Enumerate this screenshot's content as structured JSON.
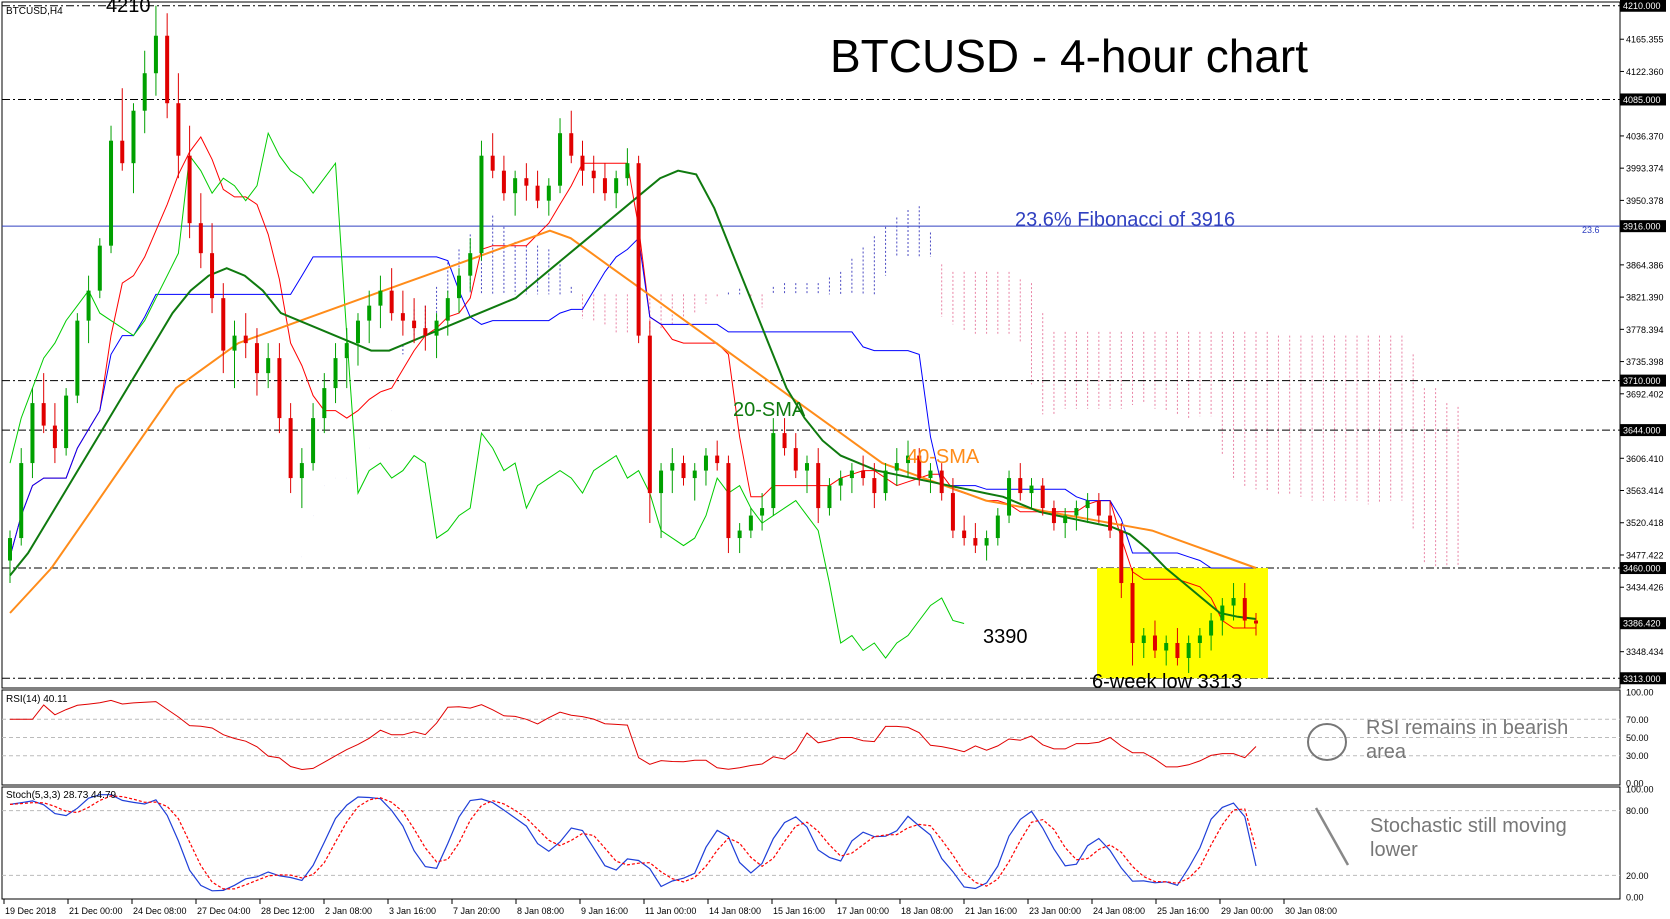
{
  "window_title": "BTCUSD,H4",
  "title": "BTCUSD - 4-hour chart",
  "price_axis_ticks": [
    "4210.000",
    "4165.355",
    "4122.360",
    "4085.000",
    "4036.370",
    "3993.374",
    "3950.378",
    "3916.000",
    "3864.386",
    "3821.390",
    "3778.394",
    "3735.398",
    "3710.000",
    "3692.402",
    "3644.000",
    "3606.410",
    "3563.414",
    "3520.418",
    "3477.422",
    "3460.000",
    "3434.426",
    "3386.420",
    "3348.434",
    "3313.000"
  ],
  "time_axis_ticks": [
    "19 Dec 2018",
    "21 Dec 00:00",
    "24 Dec 08:00",
    "27 Dec 04:00",
    "28 Dec 12:00",
    "2 Jan 08:00",
    "3 Jan 16:00",
    "7 Jan 20:00",
    "8 Jan 08:00",
    "9 Jan 16:00",
    "11 Jan 00:00",
    "14 Jan 08:00",
    "15 Jan 16:00",
    "17 Jan 00:00",
    "18 Jan 08:00",
    "21 Jan 16:00",
    "23 Jan 00:00",
    "24 Jan 08:00",
    "25 Jan 16:00",
    "29 Jan 00:00",
    "30 Jan 08:00"
  ],
  "annotations": {
    "high_label": "4210",
    "fib_label": "23.6% Fibonacci of 3916",
    "fib_tag": "23.6",
    "sma20_label": "20-SMA",
    "sma40_label": "40-SMA",
    "low_3390": "3390",
    "low_6week": "6-week low 3313",
    "rsi_note": "RSI remains in bearish area",
    "stoch_note": "Stochastic still moving lower"
  },
  "rsi_panel": {
    "header": "RSI(14) 40.11",
    "ticks": [
      "100.00",
      "70.00",
      "50.00",
      "30.00",
      "0.00"
    ]
  },
  "stoch_panel": {
    "header": "Stoch(5,3,3) 28.73 44.79",
    "ticks": [
      "100.00",
      "80.00",
      "20.00",
      "0.00"
    ]
  },
  "colors": {
    "sma20": "#0f7a0f",
    "sma40": "#ff8c1a",
    "tenkan": "#ff0000",
    "kijun": "#0000ff",
    "chikou": "#00cc00",
    "bull": "#00a000",
    "bear": "#e00000",
    "cloud_bull": "#0000aa",
    "cloud_bear": "#e05080",
    "fib": "#3040c0",
    "highlight": "#ffff00",
    "rsi": "#e00000",
    "stoch_main": "#1f3fd8",
    "stoch_signal": "#ff0000"
  },
  "chart_data": {
    "type": "candlestick",
    "symbol": "BTCUSD",
    "timeframe": "H4",
    "ylim": [
      3300,
      4215
    ],
    "horizontal_levels": [
      4210,
      4085,
      3916,
      3710,
      3644,
      3460,
      3313
    ],
    "current_price": 3386.42,
    "candles_ohlc": [
      [
        3470,
        3510,
        3440,
        3500
      ],
      [
        3500,
        3620,
        3490,
        3600
      ],
      [
        3600,
        3700,
        3580,
        3680
      ],
      [
        3680,
        3720,
        3640,
        3650
      ],
      [
        3650,
        3680,
        3600,
        3620
      ],
      [
        3620,
        3700,
        3610,
        3690
      ],
      [
        3690,
        3800,
        3680,
        3790
      ],
      [
        3790,
        3850,
        3760,
        3830
      ],
      [
        3830,
        3900,
        3820,
        3890
      ],
      [
        3890,
        4050,
        3880,
        4030
      ],
      [
        4030,
        4100,
        3990,
        4000
      ],
      [
        4000,
        4080,
        3960,
        4070
      ],
      [
        4070,
        4150,
        4040,
        4120
      ],
      [
        4120,
        4210,
        4090,
        4170
      ],
      [
        4170,
        4200,
        4060,
        4080
      ],
      [
        4080,
        4120,
        3980,
        4010
      ],
      [
        4010,
        4050,
        3900,
        3920
      ],
      [
        3920,
        3960,
        3860,
        3880
      ],
      [
        3880,
        3920,
        3800,
        3820
      ],
      [
        3820,
        3840,
        3720,
        3750
      ],
      [
        3750,
        3790,
        3700,
        3770
      ],
      [
        3770,
        3800,
        3740,
        3760
      ],
      [
        3760,
        3780,
        3690,
        3720
      ],
      [
        3720,
        3760,
        3700,
        3740
      ],
      [
        3740,
        3760,
        3640,
        3660
      ],
      [
        3660,
        3680,
        3560,
        3580
      ],
      [
        3580,
        3620,
        3540,
        3600
      ],
      [
        3600,
        3680,
        3590,
        3660
      ],
      [
        3660,
        3720,
        3640,
        3700
      ],
      [
        3700,
        3760,
        3680,
        3740
      ],
      [
        3740,
        3780,
        3700,
        3760
      ],
      [
        3760,
        3800,
        3730,
        3790
      ],
      [
        3790,
        3830,
        3760,
        3810
      ],
      [
        3810,
        3850,
        3780,
        3830
      ],
      [
        3830,
        3860,
        3790,
        3800
      ],
      [
        3800,
        3830,
        3770,
        3790
      ],
      [
        3790,
        3820,
        3760,
        3780
      ],
      [
        3780,
        3810,
        3750,
        3770
      ],
      [
        3770,
        3800,
        3740,
        3790
      ],
      [
        3790,
        3830,
        3770,
        3820
      ],
      [
        3820,
        3860,
        3800,
        3850
      ],
      [
        3850,
        3900,
        3830,
        3880
      ],
      [
        3880,
        4030,
        3870,
        4010
      ],
      [
        4010,
        4040,
        3980,
        3990
      ],
      [
        3990,
        4010,
        3950,
        3960
      ],
      [
        3960,
        3990,
        3930,
        3980
      ],
      [
        3980,
        4000,
        3950,
        3970
      ],
      [
        3970,
        3990,
        3940,
        3950
      ],
      [
        3950,
        3980,
        3930,
        3970
      ],
      [
        3970,
        4060,
        3960,
        4040
      ],
      [
        4040,
        4070,
        4000,
        4010
      ],
      [
        4010,
        4030,
        3970,
        3990
      ],
      [
        3990,
        4010,
        3960,
        3980
      ],
      [
        3980,
        4000,
        3950,
        3960
      ],
      [
        3960,
        3990,
        3940,
        3980
      ],
      [
        3980,
        4020,
        3970,
        4000
      ],
      [
        4000,
        4010,
        3760,
        3770
      ],
      [
        3770,
        3790,
        3520,
        3560
      ],
      [
        3560,
        3600,
        3500,
        3590
      ],
      [
        3590,
        3620,
        3560,
        3600
      ],
      [
        3600,
        3610,
        3570,
        3580
      ],
      [
        3580,
        3600,
        3550,
        3590
      ],
      [
        3590,
        3620,
        3570,
        3610
      ],
      [
        3610,
        3630,
        3590,
        3600
      ],
      [
        3600,
        3610,
        3480,
        3500
      ],
      [
        3500,
        3520,
        3480,
        3510
      ],
      [
        3510,
        3540,
        3500,
        3530
      ],
      [
        3530,
        3560,
        3510,
        3540
      ],
      [
        3540,
        3660,
        3530,
        3640
      ],
      [
        3640,
        3660,
        3610,
        3620
      ],
      [
        3620,
        3640,
        3580,
        3590
      ],
      [
        3590,
        3610,
        3560,
        3600
      ],
      [
        3600,
        3620,
        3520,
        3540
      ],
      [
        3540,
        3580,
        3530,
        3570
      ],
      [
        3570,
        3590,
        3550,
        3580
      ],
      [
        3580,
        3600,
        3560,
        3590
      ],
      [
        3590,
        3610,
        3570,
        3580
      ],
      [
        3580,
        3600,
        3540,
        3560
      ],
      [
        3560,
        3600,
        3550,
        3590
      ],
      [
        3590,
        3620,
        3570,
        3600
      ],
      [
        3600,
        3630,
        3580,
        3610
      ],
      [
        3610,
        3620,
        3570,
        3580
      ],
      [
        3580,
        3600,
        3560,
        3590
      ],
      [
        3590,
        3600,
        3550,
        3560
      ],
      [
        3560,
        3580,
        3500,
        3510
      ],
      [
        3510,
        3530,
        3490,
        3500
      ],
      [
        3500,
        3520,
        3480,
        3490
      ],
      [
        3490,
        3510,
        3470,
        3500
      ],
      [
        3500,
        3540,
        3490,
        3530
      ],
      [
        3530,
        3590,
        3520,
        3580
      ],
      [
        3580,
        3600,
        3550,
        3560
      ],
      [
        3560,
        3580,
        3540,
        3570
      ],
      [
        3570,
        3580,
        3530,
        3540
      ],
      [
        3540,
        3550,
        3510,
        3520
      ],
      [
        3520,
        3540,
        3500,
        3530
      ],
      [
        3530,
        3550,
        3510,
        3540
      ],
      [
        3540,
        3560,
        3520,
        3550
      ],
      [
        3550,
        3560,
        3520,
        3530
      ],
      [
        3530,
        3550,
        3500,
        3510
      ],
      [
        3510,
        3520,
        3420,
        3440
      ],
      [
        3440,
        3460,
        3330,
        3360
      ],
      [
        3360,
        3380,
        3340,
        3370
      ],
      [
        3370,
        3390,
        3340,
        3350
      ],
      [
        3350,
        3370,
        3330,
        3360
      ],
      [
        3360,
        3380,
        3330,
        3340
      ],
      [
        3340,
        3370,
        3320,
        3360
      ],
      [
        3360,
        3380,
        3340,
        3370
      ],
      [
        3370,
        3400,
        3350,
        3390
      ],
      [
        3390,
        3420,
        3370,
        3410
      ],
      [
        3410,
        3440,
        3390,
        3420
      ],
      [
        3420,
        3440,
        3380,
        3390
      ],
      [
        3390,
        3400,
        3370,
        3386
      ]
    ],
    "sma20": [
      3450,
      3480,
      3520,
      3560,
      3600,
      3640,
      3680,
      3720,
      3760,
      3800,
      3830,
      3850,
      3860,
      3850,
      3830,
      3800,
      3790,
      3780,
      3770,
      3760,
      3750,
      3750,
      3760,
      3770,
      3780,
      3790,
      3800,
      3810,
      3820,
      3840,
      3860,
      3880,
      3900,
      3920,
      3940,
      3960,
      3980,
      3990,
      3985,
      3940,
      3880,
      3820,
      3760,
      3700,
      3660,
      3630,
      3610,
      3600,
      3590,
      3585,
      3580,
      3575,
      3570,
      3565,
      3560,
      3555,
      3545,
      3535,
      3530,
      3525,
      3520,
      3515,
      3505,
      3485,
      3460,
      3440,
      3420,
      3400,
      3395,
      3392
    ],
    "sma40": [
      3400,
      3430,
      3460,
      3500,
      3540,
      3580,
      3620,
      3660,
      3700,
      3720,
      3740,
      3760,
      3770,
      3780,
      3790,
      3800,
      3810,
      3820,
      3830,
      3840,
      3850,
      3860,
      3870,
      3880,
      3890,
      3900,
      3910,
      3900,
      3880,
      3860,
      3840,
      3820,
      3800,
      3780,
      3760,
      3740,
      3720,
      3700,
      3680,
      3660,
      3640,
      3620,
      3600,
      3590,
      3580,
      3570,
      3560,
      3550,
      3545,
      3540,
      3535,
      3530,
      3525,
      3520,
      3515,
      3510,
      3500,
      3490,
      3480,
      3470,
      3460
    ],
    "rsi14_last": 40.11,
    "stoch_last": [
      28.73,
      44.79
    ]
  }
}
